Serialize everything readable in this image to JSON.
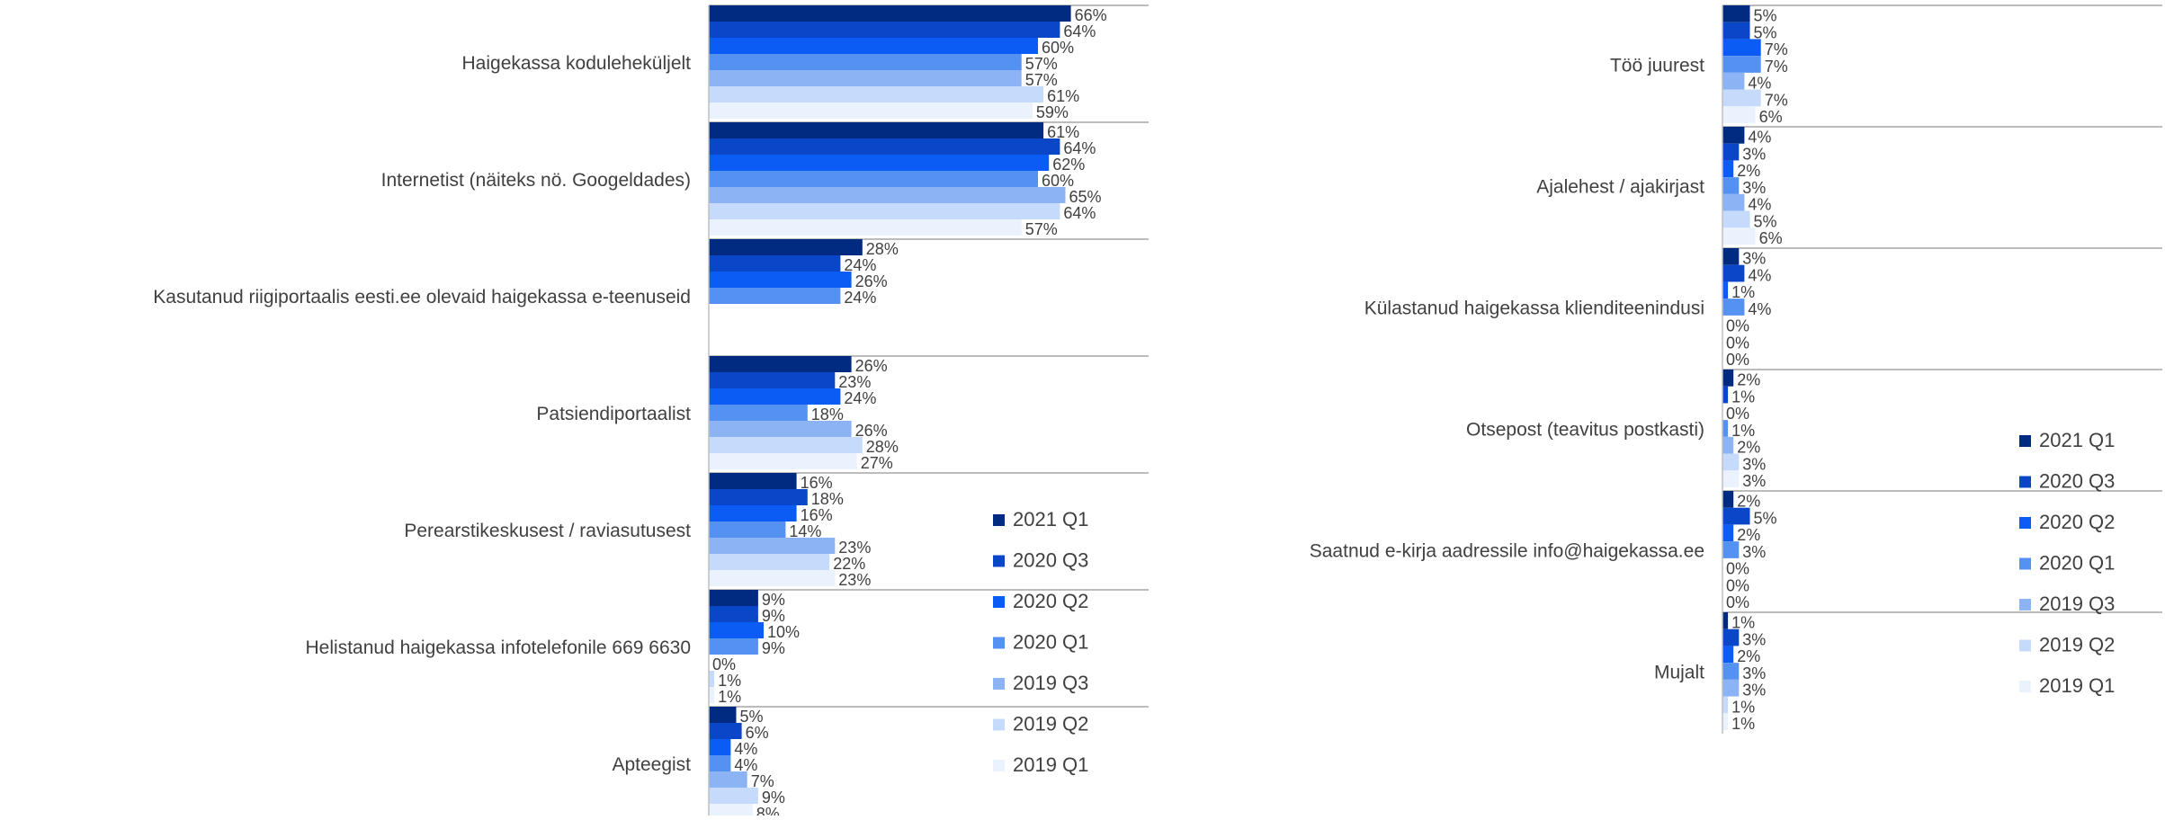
{
  "colors": {
    "2021 Q1": "#002b80",
    "2020 Q3": "#0a46c8",
    "2020 Q2": "#0a5cf5",
    "2020 Q1": "#5591f0",
    "2019 Q3": "#8cb4f5",
    "2019 Q2": "#c6dbfb",
    "2019 Q1": "#eaf2fe"
  },
  "chart_data": [
    {
      "type": "bar",
      "orientation": "horizontal",
      "value_unit": "%",
      "grid": false,
      "legend_position": "right",
      "legend": [
        "2021 Q1",
        "2020 Q3",
        "2020 Q2",
        "2020 Q1",
        "2019 Q3",
        "2019 Q2",
        "2019 Q1"
      ],
      "categories": [
        "Haigekassa koduleheküljelt",
        "Internetist (näiteks nö. Googeldades)",
        "Kasutanud riigiportaalis eesti.ee olevaid haigekassa e-teenuseid",
        "Patsiendiportaalist",
        "Perearstikeskusest / raviasutusest",
        "Helistanud haigekassa infotelefonile 669 6630",
        "Apteegist"
      ],
      "series": [
        {
          "name": "2021 Q1",
          "values": [
            66,
            61,
            28,
            26,
            16,
            9,
            5
          ]
        },
        {
          "name": "2020 Q3",
          "values": [
            64,
            64,
            24,
            23,
            18,
            9,
            6
          ]
        },
        {
          "name": "2020 Q2",
          "values": [
            60,
            62,
            26,
            24,
            16,
            10,
            4
          ]
        },
        {
          "name": "2020 Q1",
          "values": [
            57,
            60,
            24,
            18,
            14,
            9,
            4
          ]
        },
        {
          "name": "2019 Q3",
          "values": [
            57,
            65,
            null,
            26,
            23,
            0,
            7
          ]
        },
        {
          "name": "2019 Q2",
          "values": [
            61,
            64,
            null,
            28,
            22,
            1,
            9
          ]
        },
        {
          "name": "2019 Q1",
          "values": [
            59,
            57,
            null,
            27,
            23,
            1,
            8
          ]
        }
      ]
    },
    {
      "type": "bar",
      "orientation": "horizontal",
      "value_unit": "%",
      "grid": false,
      "legend_position": "right",
      "legend": [
        "2021 Q1",
        "2020 Q3",
        "2020 Q2",
        "2020 Q1",
        "2019 Q3",
        "2019 Q2",
        "2019 Q1"
      ],
      "categories": [
        "Töö juurest",
        "Ajalehest / ajakirjast",
        "Külastanud haigekassa klienditeenindusi",
        "Otsepost (teavitus postkasti)",
        "Saatnud e-kirja aadressile info@haigekassa.ee",
        "Mujalt"
      ],
      "series": [
        {
          "name": "2021 Q1",
          "values": [
            5,
            4,
            3,
            2,
            2,
            1
          ]
        },
        {
          "name": "2020 Q3",
          "values": [
            5,
            3,
            4,
            1,
            5,
            3
          ]
        },
        {
          "name": "2020 Q2",
          "values": [
            7,
            2,
            1,
            0,
            2,
            2
          ]
        },
        {
          "name": "2020 Q1",
          "values": [
            7,
            3,
            4,
            1,
            3,
            3
          ]
        },
        {
          "name": "2019 Q3",
          "values": [
            4,
            4,
            0,
            2,
            0,
            3
          ]
        },
        {
          "name": "2019 Q2",
          "values": [
            7,
            5,
            0,
            3,
            0,
            1
          ]
        },
        {
          "name": "2019 Q1",
          "values": [
            6,
            6,
            0,
            3,
            0,
            1
          ]
        }
      ]
    }
  ]
}
